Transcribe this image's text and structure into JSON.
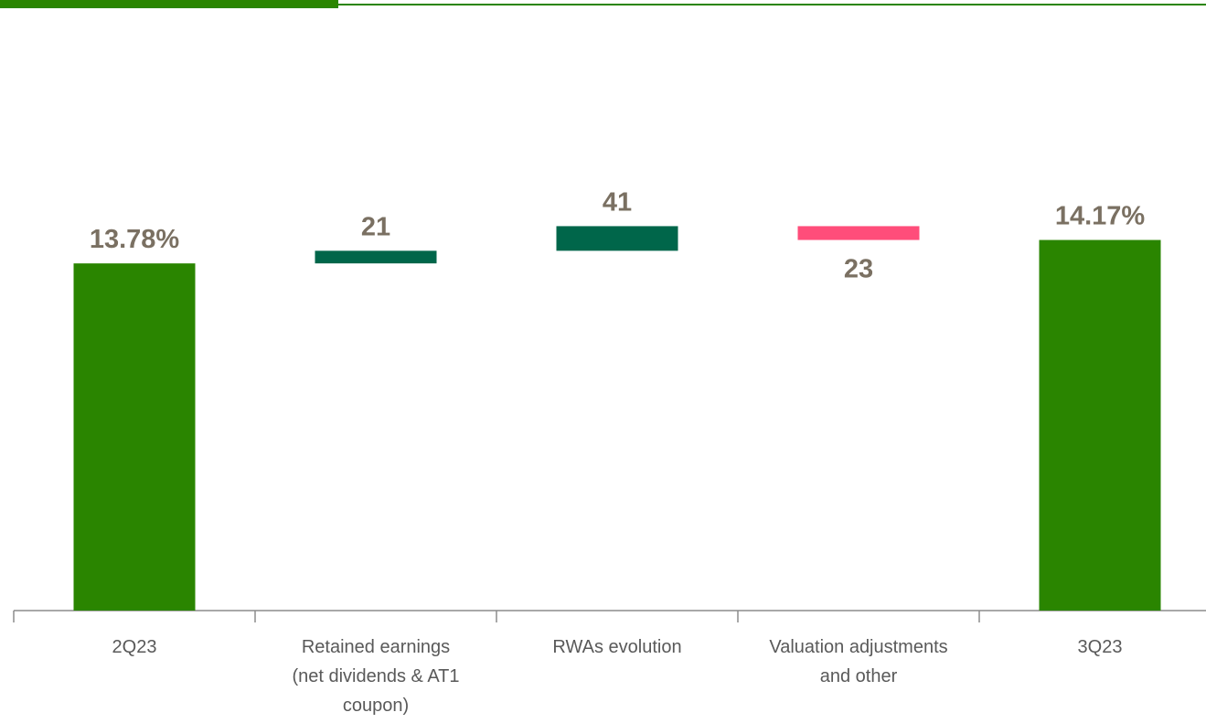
{
  "chart_data": {
    "type": "waterfall",
    "categories": [
      "2Q23",
      "Retained earnings (net dividends & AT1 coupon)",
      "RWAs evolution",
      "Valuation adjustments and other",
      "3Q23"
    ],
    "measure": [
      "absolute",
      "relative",
      "relative",
      "relative",
      "total"
    ],
    "values": [
      13.78,
      0.21,
      0.41,
      -0.23,
      14.17
    ],
    "value_labels": [
      "13.78%",
      "21",
      "41",
      "23",
      "14.17%"
    ],
    "colors": [
      "#2a8500",
      "#00664a",
      "#00664a",
      "#ff4d7a",
      "#2a8500"
    ],
    "ylim": [
      8,
      15
    ]
  }
}
